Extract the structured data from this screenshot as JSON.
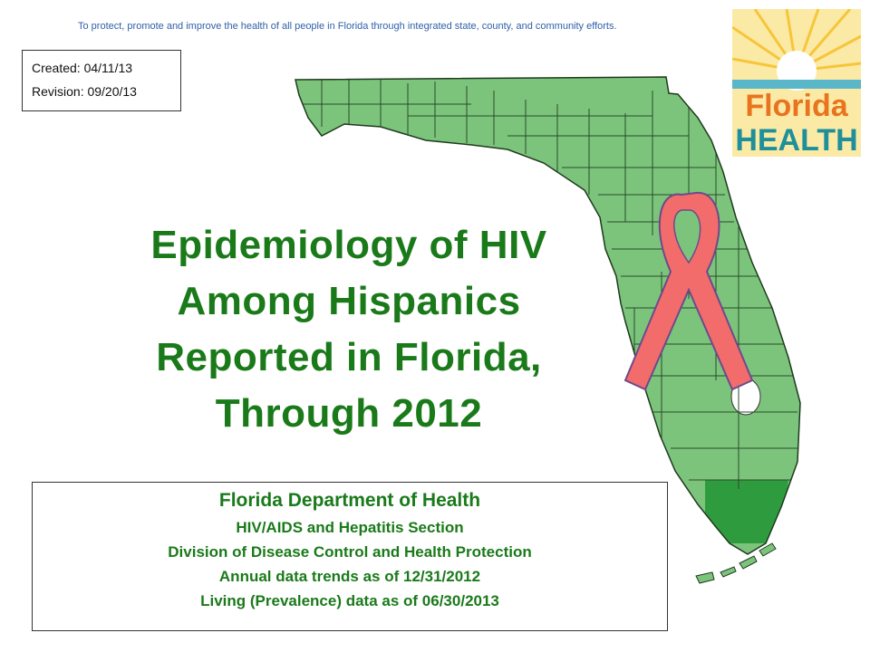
{
  "header": {
    "tagline": "To protect, promote and improve the health of all people in Florida through integrated state, county, and community efforts."
  },
  "dates": {
    "created": "Created: 04/11/13",
    "revision": "Revision: 09/20/13"
  },
  "title": {
    "line1": "Epidemiology of HIV",
    "line2": "Among Hispanics",
    "line3": "Reported in Florida,",
    "line4": "Through 2012"
  },
  "info": {
    "org": "Florida Department of Health",
    "section": "HIV/AIDS and Hepatitis Section",
    "division": "Division of Disease Control and Health Protection",
    "annual": "Annual data trends as of 12/31/2012",
    "living": "Living (Prevalence) data as of 06/30/2013"
  },
  "logo": {
    "word1": "Florida",
    "word2": "HEALTH"
  },
  "colors": {
    "title_green": "#1a7a1a",
    "map_county": "#7cc47c",
    "map_highlight": "#2e9c3e",
    "ribbon": "#f26c6c",
    "tagline_blue": "#2f5fa8",
    "logo_orange": "#e8741e",
    "logo_teal": "#1f8f9a"
  },
  "icons": [
    "florida-map",
    "awareness-ribbon-icon",
    "florida-health-logo"
  ]
}
